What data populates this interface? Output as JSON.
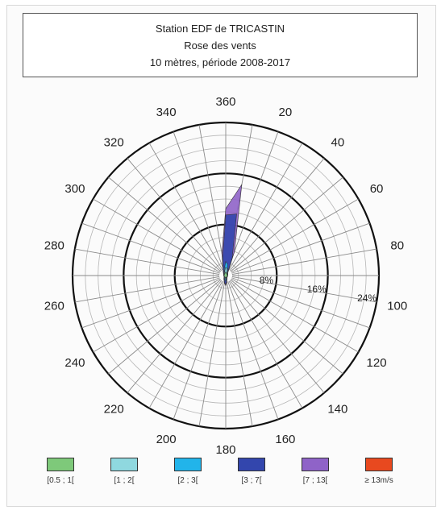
{
  "chart_data": {
    "type": "polar-area",
    "title_lines": [
      "Station EDF de TRICASTIN",
      "Rose des vents",
      "10 mètres, période 2008-2017"
    ],
    "direction_labels": [
      "360",
      "20",
      "40",
      "60",
      "80",
      "100",
      "120",
      "140",
      "160",
      "180",
      "200",
      "220",
      "240",
      "260",
      "280",
      "300",
      "320",
      "340"
    ],
    "radial_labels": [
      "8%",
      "16%",
      "24%"
    ],
    "radial_ticks": [
      8,
      16,
      24
    ],
    "rmax": 24,
    "legend": [
      {
        "label": "[0.5 ; 1[",
        "color": "#7ec97a"
      },
      {
        "label": "[1 ; 2[",
        "color": "#8fd8df"
      },
      {
        "label": "[2 ; 3[",
        "color": "#22b4ea"
      },
      {
        "label": "[3 ; 7[",
        "color": "#3346ad"
      },
      {
        "label": "[7 ; 13[",
        "color": "#8f63c8"
      },
      {
        "label": "≥ 13m/s",
        "color": "#e8491f"
      }
    ],
    "series": [
      {
        "name": "[7 ; 13[",
        "color": "#8f63c8",
        "values": [
          [
            0,
            10.5
          ],
          [
            10,
            14.5
          ],
          [
            20,
            4
          ],
          [
            30,
            0.8
          ],
          [
            40,
            0.5
          ],
          [
            60,
            0.4
          ],
          [
            90,
            0.3
          ],
          [
            120,
            0.3
          ],
          [
            150,
            0.4
          ],
          [
            170,
            1
          ],
          [
            180,
            1.6
          ],
          [
            190,
            1.2
          ],
          [
            210,
            0.6
          ],
          [
            240,
            0.3
          ],
          [
            270,
            0.3
          ],
          [
            300,
            0.4
          ],
          [
            330,
            0.8
          ],
          [
            350,
            3.5
          ]
        ]
      },
      {
        "name": "[3 ; 7[",
        "color": "#3346ad",
        "values": [
          [
            0,
            9.5
          ],
          [
            10,
            9.8
          ],
          [
            20,
            3
          ],
          [
            30,
            0.7
          ],
          [
            40,
            0.5
          ],
          [
            60,
            0.4
          ],
          [
            90,
            0.3
          ],
          [
            120,
            0.3
          ],
          [
            150,
            0.4
          ],
          [
            170,
            0.9
          ],
          [
            180,
            1.4
          ],
          [
            190,
            1.1
          ],
          [
            210,
            0.5
          ],
          [
            240,
            0.3
          ],
          [
            270,
            0.3
          ],
          [
            300,
            0.4
          ],
          [
            330,
            0.7
          ],
          [
            350,
            2.8
          ]
        ]
      },
      {
        "name": "[2 ; 3[",
        "color": "#22b4ea",
        "values": [
          [
            0,
            2.2
          ],
          [
            10,
            1.8
          ],
          [
            20,
            0.9
          ],
          [
            30,
            0.5
          ],
          [
            40,
            0.4
          ],
          [
            60,
            0.35
          ],
          [
            90,
            0.3
          ],
          [
            120,
            0.3
          ],
          [
            150,
            0.35
          ],
          [
            170,
            0.6
          ],
          [
            180,
            0.9
          ],
          [
            190,
            0.7
          ],
          [
            210,
            0.4
          ],
          [
            240,
            0.3
          ],
          [
            270,
            0.3
          ],
          [
            300,
            0.35
          ],
          [
            330,
            0.5
          ],
          [
            350,
            1.2
          ]
        ]
      },
      {
        "name": "[1 ; 2[",
        "color": "#8fd8df",
        "values": [
          [
            0,
            1.3
          ],
          [
            10,
            1.1
          ],
          [
            20,
            0.7
          ],
          [
            30,
            0.4
          ],
          [
            60,
            0.3
          ],
          [
            90,
            0.3
          ],
          [
            120,
            0.3
          ],
          [
            150,
            0.3
          ],
          [
            180,
            0.6
          ],
          [
            210,
            0.3
          ],
          [
            240,
            0.3
          ],
          [
            270,
            0.3
          ],
          [
            300,
            0.3
          ],
          [
            330,
            0.4
          ],
          [
            350,
            0.8
          ]
        ]
      },
      {
        "name": "[0.5 ; 1[",
        "color": "#7ec97a",
        "values": [
          [
            0,
            0.6
          ],
          [
            30,
            0.3
          ],
          [
            60,
            0.25
          ],
          [
            90,
            0.25
          ],
          [
            120,
            0.25
          ],
          [
            150,
            0.25
          ],
          [
            180,
            0.35
          ],
          [
            210,
            0.25
          ],
          [
            240,
            0.25
          ],
          [
            270,
            0.25
          ],
          [
            300,
            0.25
          ],
          [
            330,
            0.3
          ]
        ]
      }
    ]
  }
}
